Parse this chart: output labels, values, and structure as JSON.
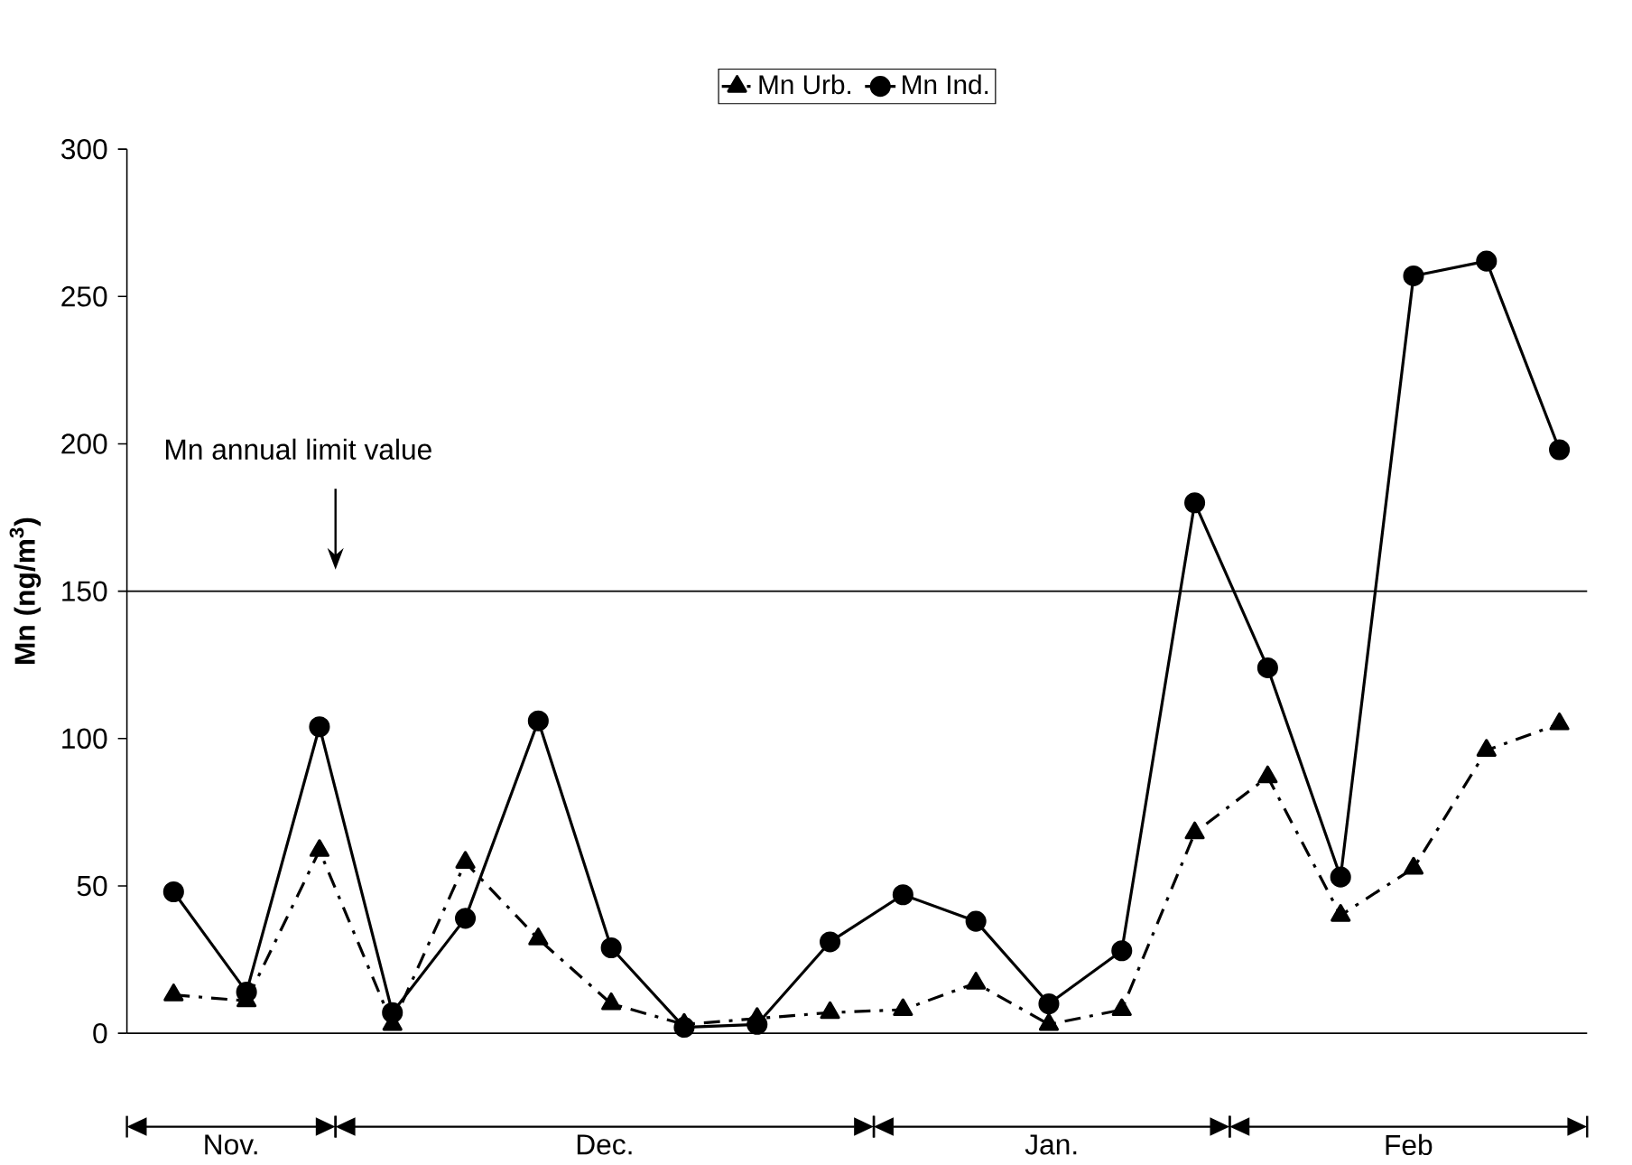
{
  "chart_data": {
    "type": "line",
    "ylabel": "Mn (ng/m$^{3}$)",
    "categories": [
      null,
      null,
      null,
      null,
      null,
      null,
      null,
      null,
      null,
      null,
      null,
      null,
      null,
      null,
      null,
      null,
      null,
      null,
      null,
      null
    ],
    "series": [
      {
        "name": "Mn Urb.",
        "color": "#000000",
        "marker": "triangle",
        "line_style": "dashdot",
        "values": [
          13,
          11,
          62,
          3,
          58,
          32,
          10,
          3,
          5,
          7,
          8,
          17,
          3,
          8,
          68,
          87,
          40,
          56,
          96,
          105
        ]
      },
      {
        "name": "Mn Ind.",
        "color": "#000000",
        "marker": "circle",
        "line_style": "solid",
        "values": [
          48,
          14,
          104,
          7,
          39,
          106,
          29,
          2,
          3,
          31,
          47,
          38,
          10,
          28,
          180,
          124,
          53,
          257,
          262,
          198
        ]
      }
    ],
    "ylim": [
      0,
      300
    ],
    "yticks": [
      0,
      50,
      100,
      150,
      200,
      250,
      300
    ],
    "ref_lines": [
      {
        "axis": "y",
        "value": 150,
        "color": "#000000"
      }
    ],
    "annotations": [
      "Mn annual limit value",
      "Nov.",
      "Dec.",
      "Jan.",
      "Feb"
    ],
    "grid": false,
    "legend": "top"
  }
}
